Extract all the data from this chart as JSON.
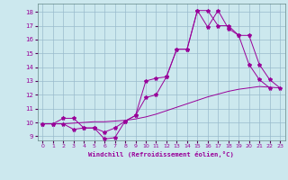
{
  "xlabel": "Windchill (Refroidissement éolien,°C)",
  "bg_color": "#cce8ee",
  "grid_color": "#99bbcc",
  "line_color": "#990099",
  "xlim": [
    -0.5,
    23.5
  ],
  "ylim": [
    8.7,
    18.6
  ],
  "yticks": [
    9,
    10,
    11,
    12,
    13,
    14,
    15,
    16,
    17,
    18
  ],
  "xticks": [
    0,
    1,
    2,
    3,
    4,
    5,
    6,
    7,
    8,
    9,
    10,
    11,
    12,
    13,
    14,
    15,
    16,
    17,
    18,
    19,
    20,
    21,
    22,
    23
  ],
  "line1_x": [
    0,
    1,
    2,
    3,
    4,
    5,
    6,
    7,
    8,
    9,
    10,
    11,
    12,
    13,
    14,
    15,
    16,
    17,
    18,
    19,
    20,
    21,
    22
  ],
  "line1_y": [
    9.9,
    9.9,
    9.9,
    9.5,
    9.6,
    9.6,
    8.8,
    8.9,
    10.1,
    10.5,
    11.8,
    12.0,
    13.3,
    15.3,
    15.3,
    18.1,
    16.9,
    18.1,
    16.8,
    16.3,
    14.2,
    13.1,
    12.5
  ],
  "line2_x": [
    0,
    1,
    2,
    3,
    4,
    5,
    6,
    7,
    8,
    9,
    10,
    11,
    12,
    13,
    14,
    15,
    16,
    17,
    18,
    19,
    20,
    21,
    22,
    23
  ],
  "line2_y": [
    9.9,
    9.9,
    10.3,
    10.3,
    9.6,
    9.6,
    9.3,
    9.6,
    10.1,
    10.5,
    13.0,
    13.2,
    13.3,
    15.3,
    15.3,
    18.1,
    18.1,
    17.0,
    17.0,
    16.3,
    16.3,
    14.2,
    13.1,
    12.5
  ],
  "line3_x": [
    0,
    1,
    2,
    3,
    4,
    5,
    6,
    7,
    8,
    9,
    10,
    11,
    12,
    13,
    14,
    15,
    16,
    17,
    18,
    19,
    20,
    21,
    22,
    23
  ],
  "line3_y": [
    9.9,
    9.9,
    9.9,
    9.95,
    10.0,
    10.05,
    10.05,
    10.1,
    10.15,
    10.25,
    10.4,
    10.6,
    10.85,
    11.1,
    11.35,
    11.6,
    11.85,
    12.05,
    12.25,
    12.4,
    12.5,
    12.6,
    12.55,
    12.5
  ]
}
